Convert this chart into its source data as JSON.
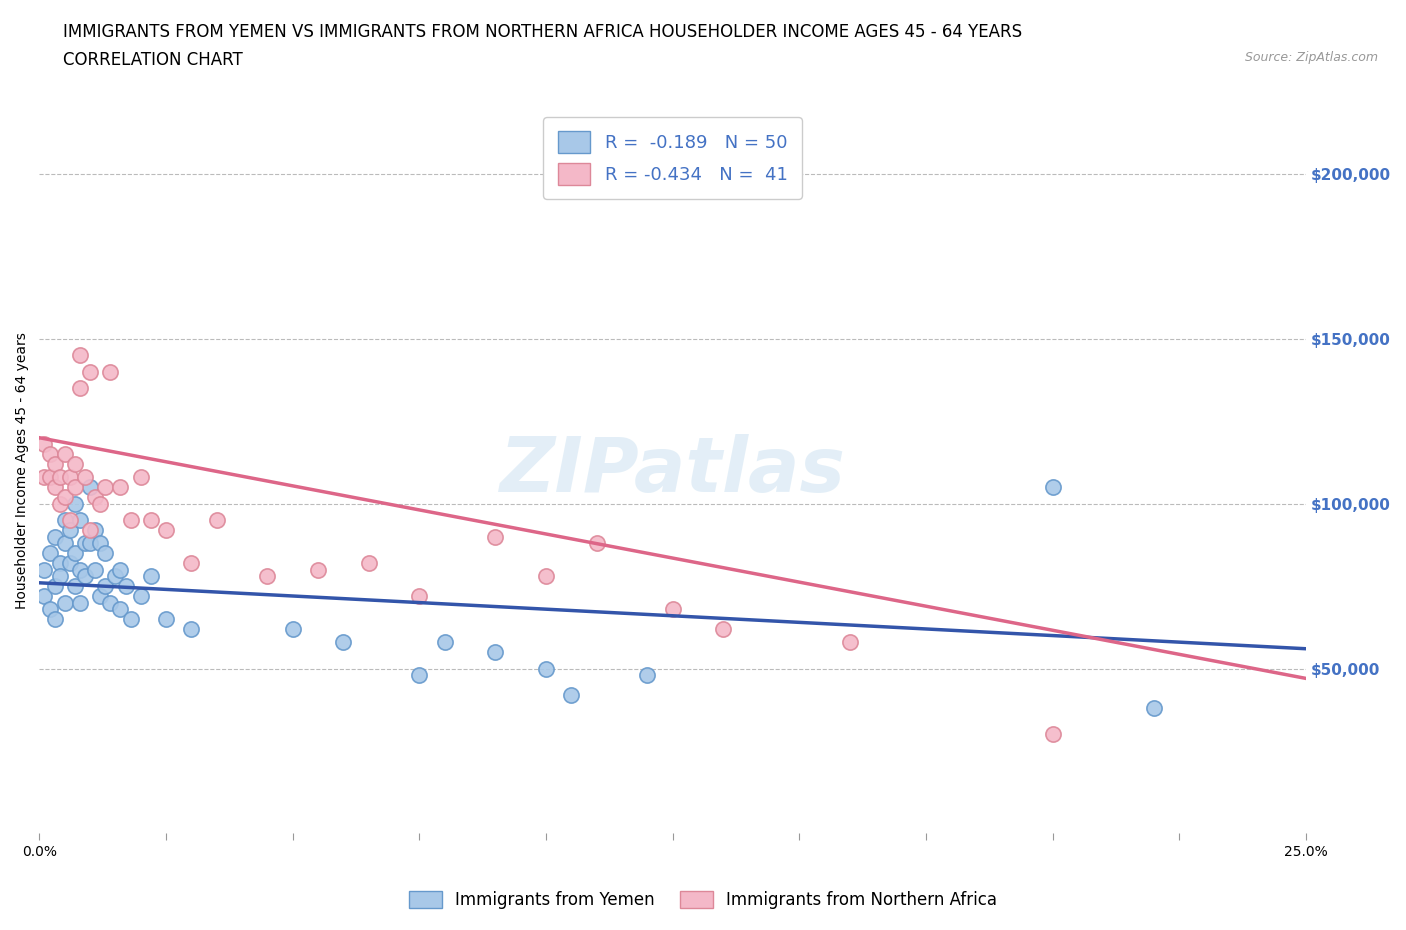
{
  "title_line1": "IMMIGRANTS FROM YEMEN VS IMMIGRANTS FROM NORTHERN AFRICA HOUSEHOLDER INCOME AGES 45 - 64 YEARS",
  "title_line2": "CORRELATION CHART",
  "source_text": "Source: ZipAtlas.com",
  "ylabel": "Householder Income Ages 45 - 64 years",
  "xlim": [
    0.0,
    0.25
  ],
  "ylim": [
    0,
    220000
  ],
  "xtick_positions": [
    0.0,
    0.025,
    0.05,
    0.075,
    0.1,
    0.125,
    0.15,
    0.175,
    0.2,
    0.225,
    0.25
  ],
  "xtick_labels_show": {
    "0.0": "0.0%",
    "0.25": "25.0%"
  },
  "ytick_labels": [
    "$50,000",
    "$100,000",
    "$150,000",
    "$200,000"
  ],
  "ytick_values": [
    50000,
    100000,
    150000,
    200000
  ],
  "watermark": "ZIPatlas",
  "legend_blue_label": "Immigrants from Yemen",
  "legend_pink_label": "Immigrants from Northern Africa",
  "R_blue": -0.189,
  "N_blue": 50,
  "R_pink": -0.434,
  "N_pink": 41,
  "blue_scatter_color": "#a8c8e8",
  "blue_scatter_edge": "#6699cc",
  "pink_scatter_color": "#f4b8c8",
  "pink_scatter_edge": "#dd8899",
  "blue_line_color": "#3355aa",
  "pink_line_color": "#dd6688",
  "scatter_blue_x": [
    0.001,
    0.001,
    0.002,
    0.002,
    0.003,
    0.003,
    0.003,
    0.004,
    0.004,
    0.005,
    0.005,
    0.005,
    0.006,
    0.006,
    0.007,
    0.007,
    0.007,
    0.008,
    0.008,
    0.008,
    0.009,
    0.009,
    0.01,
    0.01,
    0.011,
    0.011,
    0.012,
    0.012,
    0.013,
    0.013,
    0.014,
    0.015,
    0.016,
    0.016,
    0.017,
    0.018,
    0.02,
    0.022,
    0.025,
    0.03,
    0.05,
    0.06,
    0.075,
    0.08,
    0.09,
    0.1,
    0.105,
    0.12,
    0.2,
    0.22
  ],
  "scatter_blue_y": [
    80000,
    72000,
    85000,
    68000,
    90000,
    75000,
    65000,
    82000,
    78000,
    88000,
    95000,
    70000,
    92000,
    82000,
    100000,
    85000,
    75000,
    95000,
    80000,
    70000,
    88000,
    78000,
    105000,
    88000,
    92000,
    80000,
    88000,
    72000,
    85000,
    75000,
    70000,
    78000,
    80000,
    68000,
    75000,
    65000,
    72000,
    78000,
    65000,
    62000,
    62000,
    58000,
    48000,
    58000,
    55000,
    50000,
    42000,
    48000,
    105000,
    38000
  ],
  "scatter_pink_x": [
    0.001,
    0.001,
    0.002,
    0.002,
    0.003,
    0.003,
    0.004,
    0.004,
    0.005,
    0.005,
    0.006,
    0.006,
    0.007,
    0.007,
    0.008,
    0.008,
    0.009,
    0.01,
    0.01,
    0.011,
    0.012,
    0.013,
    0.014,
    0.016,
    0.018,
    0.02,
    0.022,
    0.025,
    0.03,
    0.035,
    0.045,
    0.055,
    0.065,
    0.075,
    0.09,
    0.1,
    0.11,
    0.125,
    0.135,
    0.16,
    0.2
  ],
  "scatter_pink_y": [
    108000,
    118000,
    108000,
    115000,
    105000,
    112000,
    108000,
    100000,
    115000,
    102000,
    108000,
    95000,
    112000,
    105000,
    145000,
    135000,
    108000,
    140000,
    92000,
    102000,
    100000,
    105000,
    140000,
    105000,
    95000,
    108000,
    95000,
    92000,
    82000,
    95000,
    78000,
    80000,
    82000,
    72000,
    90000,
    78000,
    88000,
    68000,
    62000,
    58000,
    30000
  ],
  "hline_values": [
    50000,
    100000,
    150000,
    200000
  ],
  "background_color": "#ffffff",
  "title_fontsize": 12,
  "axis_label_fontsize": 10,
  "tick_fontsize": 10,
  "legend_fontsize": 13,
  "scatter_size": 120
}
